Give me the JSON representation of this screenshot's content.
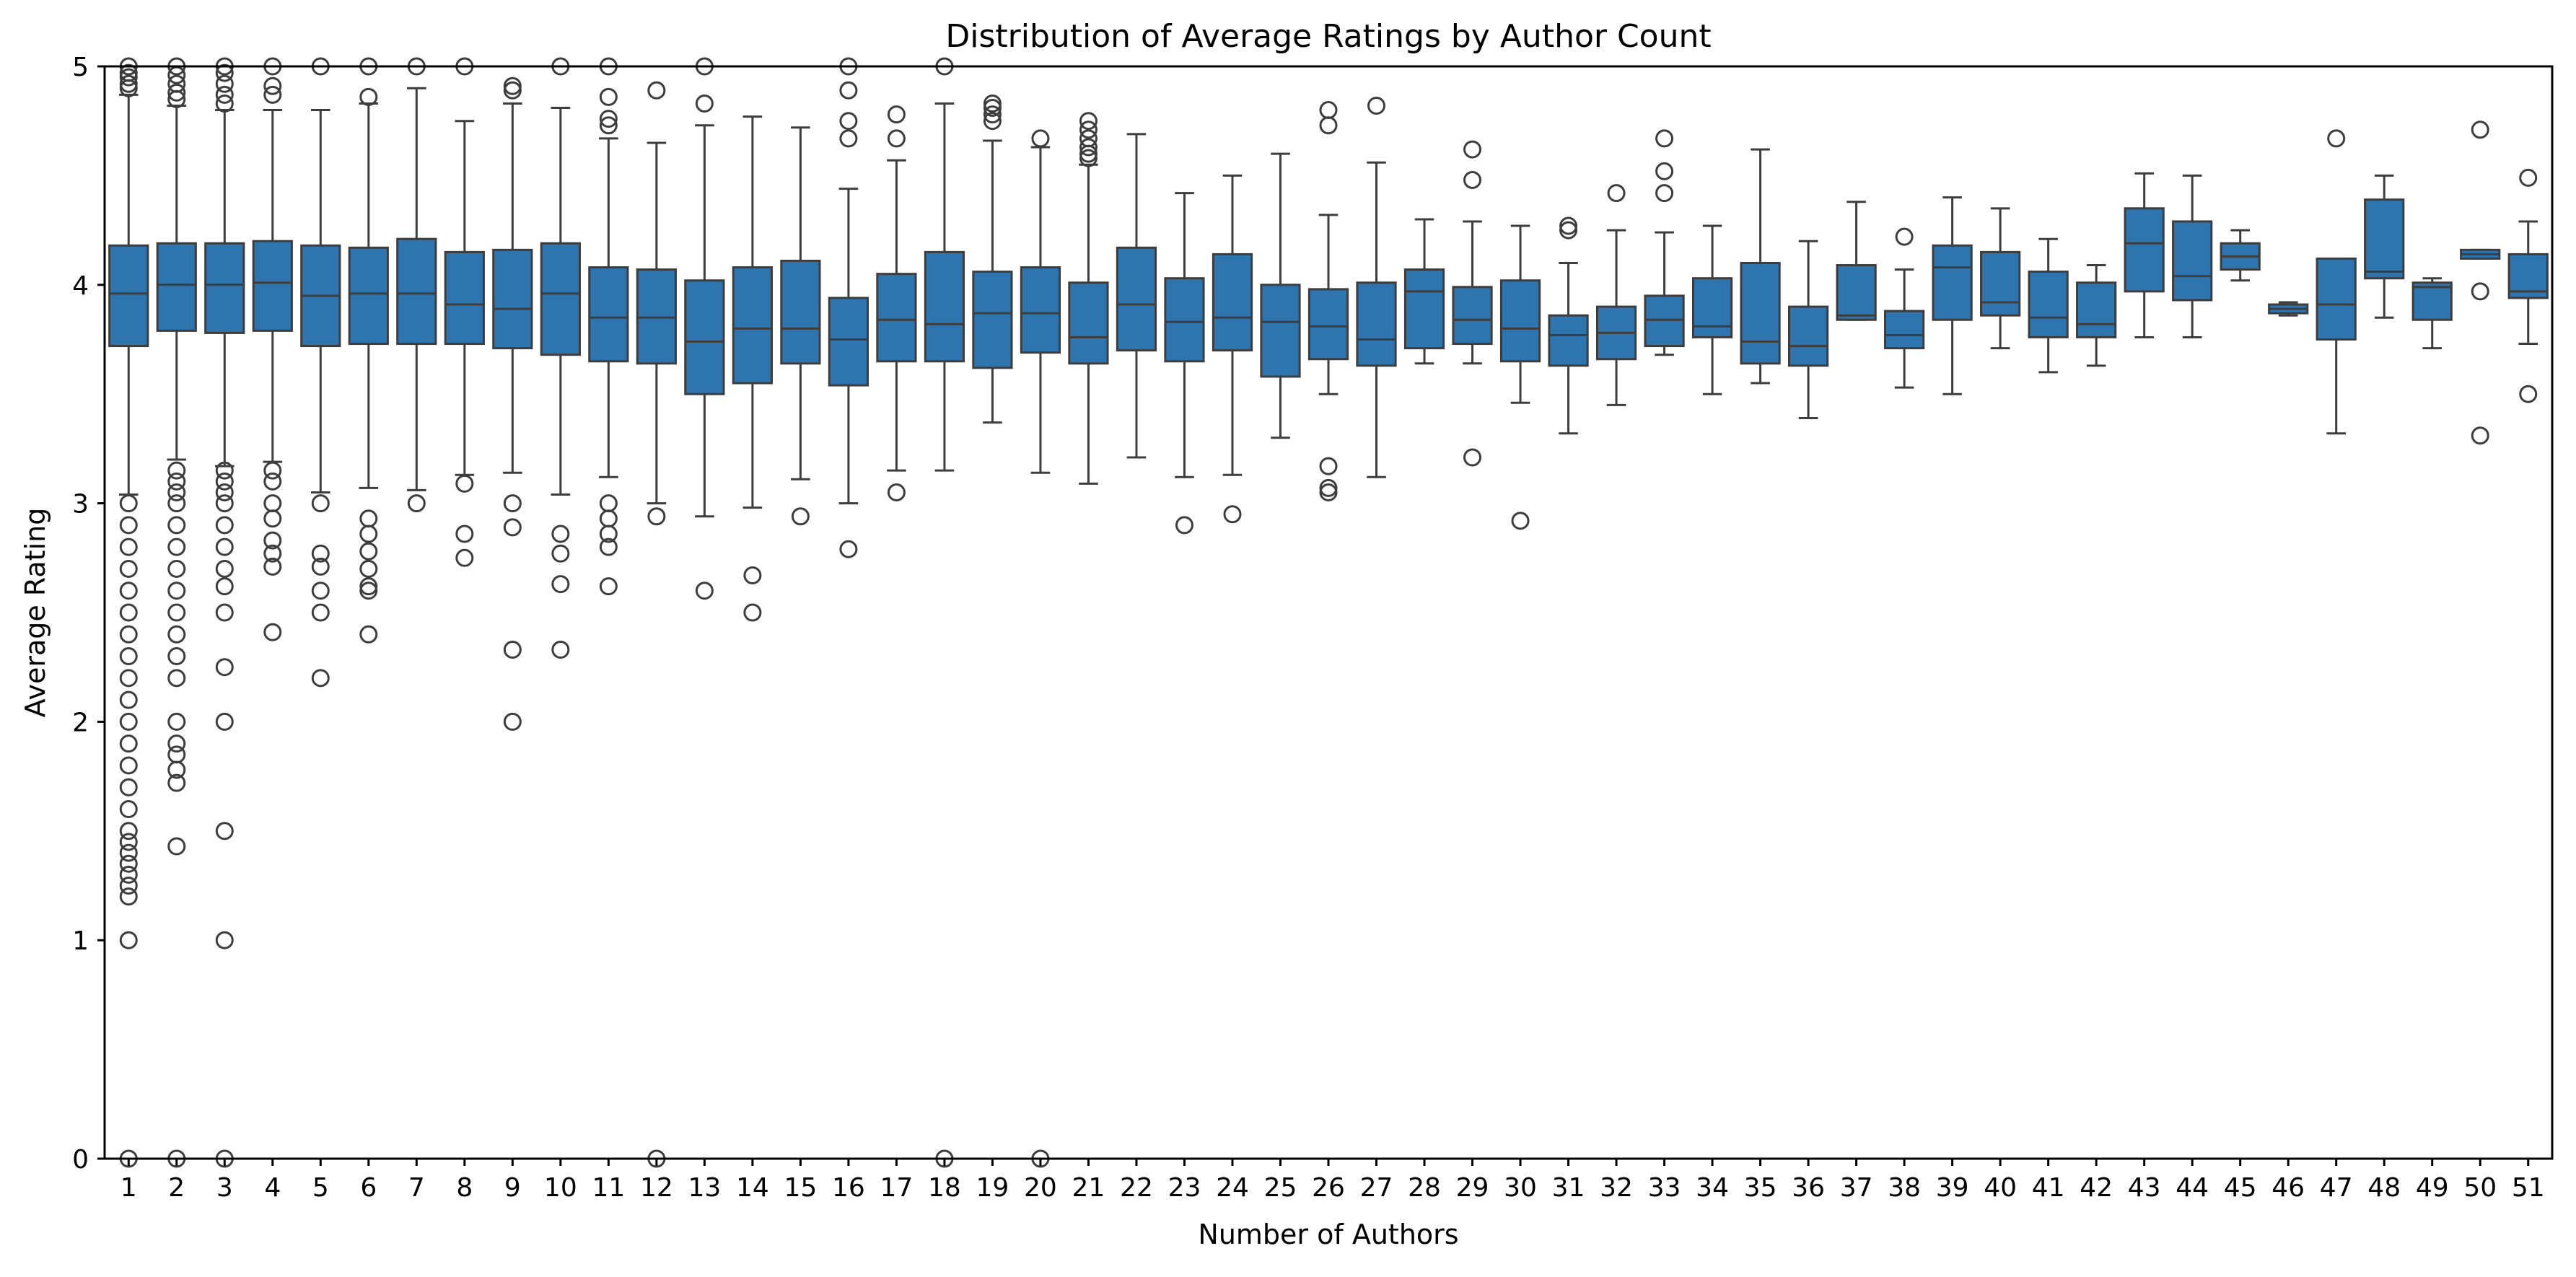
{
  "chart_data": {
    "type": "box",
    "title": "Distribution of Average Ratings by Author Count",
    "xlabel": "Number of Authors",
    "ylabel": "Average Rating",
    "ylim": [
      0,
      5
    ],
    "yticks": [
      0,
      1,
      2,
      3,
      4,
      5
    ],
    "grid": false,
    "legend": "none",
    "box_color": "#2e75b0",
    "line_color": "#3d3d3d",
    "categories": [
      "1",
      "2",
      "3",
      "4",
      "5",
      "6",
      "7",
      "8",
      "9",
      "10",
      "11",
      "12",
      "13",
      "14",
      "15",
      "16",
      "17",
      "18",
      "19",
      "20",
      "21",
      "22",
      "23",
      "24",
      "25",
      "26",
      "27",
      "28",
      "29",
      "30",
      "31",
      "32",
      "33",
      "34",
      "35",
      "36",
      "37",
      "38",
      "39",
      "40",
      "41",
      "42",
      "43",
      "44",
      "45",
      "46",
      "47",
      "48",
      "49",
      "50",
      "51"
    ],
    "boxes": [
      {
        "q1": 3.72,
        "median": 3.96,
        "q3": 4.18,
        "whislo": 3.04,
        "whishi": 4.87,
        "fliers": [
          0,
          1.0,
          1.2,
          1.25,
          1.3,
          1.35,
          1.4,
          1.45,
          1.5,
          1.6,
          1.7,
          1.8,
          1.9,
          2.0,
          2.1,
          2.2,
          2.3,
          2.4,
          2.5,
          2.6,
          2.7,
          2.8,
          2.9,
          3.0,
          4.9,
          4.92,
          4.95,
          4.97,
          5.0
        ]
      },
      {
        "q1": 3.79,
        "median": 4.0,
        "q3": 4.19,
        "whislo": 3.2,
        "whishi": 4.82,
        "fliers": [
          0,
          1.43,
          1.72,
          1.78,
          1.85,
          1.9,
          2.0,
          2.2,
          2.3,
          2.4,
          2.5,
          2.6,
          2.7,
          2.8,
          2.9,
          3.0,
          3.05,
          3.1,
          3.15,
          4.85,
          4.88,
          4.92,
          4.96,
          5.0
        ]
      },
      {
        "q1": 3.78,
        "median": 4.0,
        "q3": 4.19,
        "whislo": 3.17,
        "whishi": 4.8,
        "fliers": [
          0,
          1.0,
          1.5,
          2.0,
          2.25,
          2.5,
          2.62,
          2.7,
          2.8,
          2.9,
          3.0,
          3.05,
          3.1,
          3.15,
          4.83,
          4.87,
          4.92,
          4.97,
          5.0
        ]
      },
      {
        "q1": 3.79,
        "median": 4.01,
        "q3": 4.2,
        "whislo": 3.19,
        "whishi": 4.8,
        "fliers": [
          2.41,
          2.71,
          2.77,
          2.83,
          2.93,
          3.0,
          3.1,
          3.15,
          4.87,
          4.91,
          5.0
        ]
      },
      {
        "q1": 3.72,
        "median": 3.95,
        "q3": 4.18,
        "whislo": 3.05,
        "whishi": 4.8,
        "fliers": [
          2.2,
          2.5,
          2.6,
          2.71,
          2.77,
          3.0,
          5.0
        ]
      },
      {
        "q1": 3.73,
        "median": 3.96,
        "q3": 4.17,
        "whislo": 3.07,
        "whishi": 4.83,
        "fliers": [
          2.4,
          2.6,
          2.62,
          2.7,
          2.78,
          2.86,
          2.93,
          4.86,
          5.0
        ]
      },
      {
        "q1": 3.73,
        "median": 3.96,
        "q3": 4.21,
        "whislo": 3.06,
        "whishi": 4.9,
        "fliers": [
          3.0,
          5.0
        ]
      },
      {
        "q1": 3.73,
        "median": 3.91,
        "q3": 4.15,
        "whislo": 3.13,
        "whishi": 4.75,
        "fliers": [
          2.75,
          2.86,
          3.09,
          5.0
        ]
      },
      {
        "q1": 3.71,
        "median": 3.89,
        "q3": 4.16,
        "whislo": 3.14,
        "whishi": 4.83,
        "fliers": [
          2.0,
          2.33,
          2.89,
          3.0,
          4.89,
          4.91
        ]
      },
      {
        "q1": 3.68,
        "median": 3.96,
        "q3": 4.19,
        "whislo": 3.04,
        "whishi": 4.81,
        "fliers": [
          2.33,
          2.63,
          2.77,
          2.86,
          5.0
        ]
      },
      {
        "q1": 3.65,
        "median": 3.85,
        "q3": 4.08,
        "whislo": 3.12,
        "whishi": 4.67,
        "fliers": [
          2.62,
          2.8,
          2.86,
          2.93,
          3.0,
          4.73,
          4.76,
          4.86,
          5.0
        ]
      },
      {
        "q1": 3.64,
        "median": 3.85,
        "q3": 4.07,
        "whislo": 3.0,
        "whishi": 4.65,
        "fliers": [
          0,
          2.94,
          4.89
        ]
      },
      {
        "q1": 3.5,
        "median": 3.74,
        "q3": 4.02,
        "whislo": 2.94,
        "whishi": 4.73,
        "fliers": [
          2.6,
          4.83,
          5.0
        ]
      },
      {
        "q1": 3.55,
        "median": 3.8,
        "q3": 4.08,
        "whislo": 2.98,
        "whishi": 4.77,
        "fliers": [
          2.5,
          2.67
        ]
      },
      {
        "q1": 3.64,
        "median": 3.8,
        "q3": 4.11,
        "whislo": 3.11,
        "whishi": 4.72,
        "fliers": [
          2.94
        ]
      },
      {
        "q1": 3.54,
        "median": 3.75,
        "q3": 3.94,
        "whislo": 3.0,
        "whishi": 4.44,
        "fliers": [
          2.79,
          4.67,
          4.75,
          4.89,
          5.0
        ]
      },
      {
        "q1": 3.65,
        "median": 3.84,
        "q3": 4.05,
        "whislo": 3.15,
        "whishi": 4.57,
        "fliers": [
          3.05,
          4.67,
          4.78
        ]
      },
      {
        "q1": 3.65,
        "median": 3.82,
        "q3": 4.15,
        "whislo": 3.15,
        "whishi": 4.83,
        "fliers": [
          0,
          5.0
        ]
      },
      {
        "q1": 3.62,
        "median": 3.87,
        "q3": 4.06,
        "whislo": 3.37,
        "whishi": 4.66,
        "fliers": [
          4.75,
          4.78,
          4.81,
          4.83
        ]
      },
      {
        "q1": 3.69,
        "median": 3.87,
        "q3": 4.08,
        "whislo": 3.14,
        "whishi": 4.63,
        "fliers": [
          0,
          4.67
        ]
      },
      {
        "q1": 3.64,
        "median": 3.76,
        "q3": 4.01,
        "whislo": 3.09,
        "whishi": 4.55,
        "fliers": [
          4.58,
          4.6,
          4.63,
          4.67,
          4.71,
          4.75
        ]
      },
      {
        "q1": 3.7,
        "median": 3.91,
        "q3": 4.17,
        "whislo": 3.21,
        "whishi": 4.69,
        "fliers": []
      },
      {
        "q1": 3.65,
        "median": 3.83,
        "q3": 4.03,
        "whislo": 3.12,
        "whishi": 4.42,
        "fliers": [
          2.9
        ]
      },
      {
        "q1": 3.7,
        "median": 3.85,
        "q3": 4.14,
        "whislo": 3.13,
        "whishi": 4.5,
        "fliers": [
          2.95
        ]
      },
      {
        "q1": 3.58,
        "median": 3.83,
        "q3": 4.0,
        "whislo": 3.3,
        "whishi": 4.6,
        "fliers": []
      },
      {
        "q1": 3.66,
        "median": 3.81,
        "q3": 3.98,
        "whislo": 3.5,
        "whishi": 4.32,
        "fliers": [
          3.05,
          3.07,
          3.17,
          4.73,
          4.8
        ]
      },
      {
        "q1": 3.63,
        "median": 3.75,
        "q3": 4.01,
        "whislo": 3.12,
        "whishi": 4.56,
        "fliers": [
          4.82
        ]
      },
      {
        "q1": 3.71,
        "median": 3.97,
        "q3": 4.07,
        "whislo": 3.64,
        "whishi": 4.3,
        "fliers": []
      },
      {
        "q1": 3.73,
        "median": 3.84,
        "q3": 3.99,
        "whislo": 3.64,
        "whishi": 4.29,
        "fliers": [
          3.21,
          4.48,
          4.62
        ]
      },
      {
        "q1": 3.65,
        "median": 3.8,
        "q3": 4.02,
        "whislo": 3.46,
        "whishi": 4.27,
        "fliers": [
          2.92
        ]
      },
      {
        "q1": 3.63,
        "median": 3.77,
        "q3": 3.86,
        "whislo": 3.32,
        "whishi": 4.1,
        "fliers": [
          4.25,
          4.27
        ]
      },
      {
        "q1": 3.66,
        "median": 3.78,
        "q3": 3.9,
        "whislo": 3.45,
        "whishi": 4.25,
        "fliers": [
          4.42
        ]
      },
      {
        "q1": 3.72,
        "median": 3.84,
        "q3": 3.95,
        "whislo": 3.68,
        "whishi": 4.24,
        "fliers": [
          4.42,
          4.52,
          4.67
        ]
      },
      {
        "q1": 3.76,
        "median": 3.81,
        "q3": 4.03,
        "whislo": 3.5,
        "whishi": 4.27,
        "fliers": []
      },
      {
        "q1": 3.64,
        "median": 3.74,
        "q3": 4.1,
        "whislo": 3.55,
        "whishi": 4.62,
        "fliers": []
      },
      {
        "q1": 3.63,
        "median": 3.72,
        "q3": 3.9,
        "whislo": 3.39,
        "whishi": 4.2,
        "fliers": []
      },
      {
        "q1": 3.84,
        "median": 3.86,
        "q3": 4.09,
        "whislo": 3.84,
        "whishi": 4.38,
        "fliers": []
      },
      {
        "q1": 3.71,
        "median": 3.77,
        "q3": 3.88,
        "whislo": 3.53,
        "whishi": 4.07,
        "fliers": [
          4.22
        ]
      },
      {
        "q1": 3.84,
        "median": 4.08,
        "q3": 4.18,
        "whislo": 3.5,
        "whishi": 4.4,
        "fliers": []
      },
      {
        "q1": 3.86,
        "median": 3.92,
        "q3": 4.15,
        "whislo": 3.71,
        "whishi": 4.35,
        "fliers": []
      },
      {
        "q1": 3.76,
        "median": 3.85,
        "q3": 4.06,
        "whislo": 3.6,
        "whishi": 4.21,
        "fliers": []
      },
      {
        "q1": 3.76,
        "median": 3.82,
        "q3": 4.01,
        "whislo": 3.63,
        "whishi": 4.09,
        "fliers": []
      },
      {
        "q1": 3.97,
        "median": 4.19,
        "q3": 4.35,
        "whislo": 3.76,
        "whishi": 4.51,
        "fliers": []
      },
      {
        "q1": 3.93,
        "median": 4.04,
        "q3": 4.29,
        "whislo": 3.76,
        "whishi": 4.5,
        "fliers": []
      },
      {
        "q1": 4.07,
        "median": 4.13,
        "q3": 4.19,
        "whislo": 4.02,
        "whishi": 4.25,
        "fliers": []
      },
      {
        "q1": 3.87,
        "median": 3.89,
        "q3": 3.91,
        "whislo": 3.86,
        "whishi": 3.92,
        "fliers": []
      },
      {
        "q1": 3.75,
        "median": 3.91,
        "q3": 4.12,
        "whislo": 3.32,
        "whishi": 4.12,
        "fliers": [
          4.67
        ]
      },
      {
        "q1": 4.03,
        "median": 4.06,
        "q3": 4.39,
        "whislo": 3.85,
        "whishi": 4.5,
        "fliers": []
      },
      {
        "q1": 3.84,
        "median": 3.99,
        "q3": 4.01,
        "whislo": 3.71,
        "whishi": 4.03,
        "fliers": []
      },
      {
        "q1": 4.12,
        "median": 4.14,
        "q3": 4.16,
        "whislo": 4.12,
        "whishi": 4.16,
        "fliers": [
          3.31,
          3.97,
          4.71
        ]
      },
      {
        "q1": 3.94,
        "median": 3.97,
        "q3": 4.14,
        "whislo": 3.73,
        "whishi": 4.29,
        "fliers": [
          3.5,
          4.49
        ]
      }
    ]
  }
}
